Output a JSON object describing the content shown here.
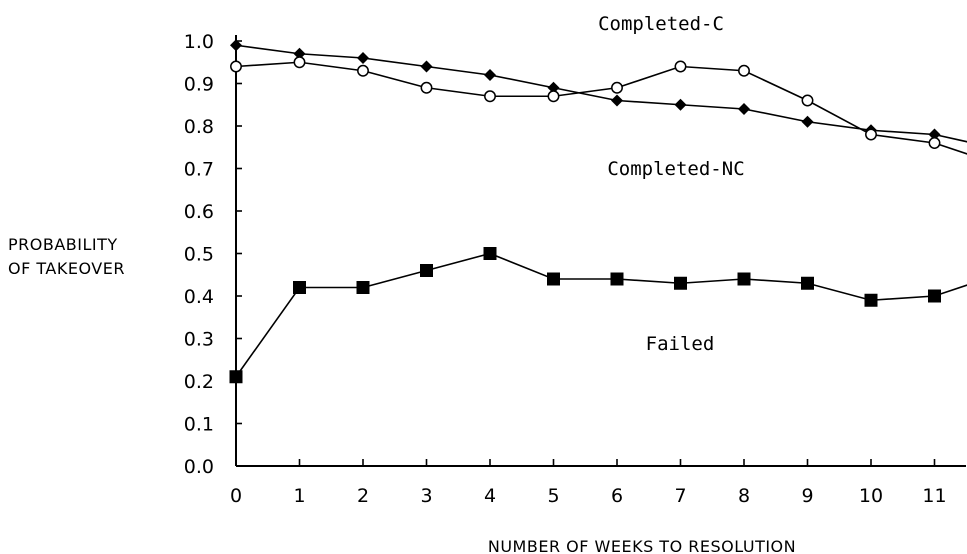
{
  "chart_data": {
    "type": "line",
    "title": "",
    "xlabel": "NUMBER OF WEEKS TO RESOLUTION",
    "ylabel": [
      "PROBABILITY",
      "OF TAKEOVER"
    ],
    "x": [
      0,
      1,
      2,
      3,
      4,
      5,
      6,
      7,
      8,
      9,
      10,
      11
    ],
    "xticks": [
      "0",
      "1",
      "2",
      "3",
      "4",
      "5",
      "6",
      "7",
      "8",
      "9",
      "10",
      "11"
    ],
    "yticks": [
      "0.0",
      "0.1",
      "0.2",
      "0.3",
      "0.4",
      "0.5",
      "0.6",
      "0.7",
      "0.8",
      "0.9",
      "1.0"
    ],
    "xlim": [
      0,
      11.6
    ],
    "ylim": [
      0,
      1.0
    ],
    "grid": false,
    "series": [
      {
        "name": "Completed-C",
        "marker": "filled-diamond",
        "values": [
          0.99,
          0.97,
          0.96,
          0.94,
          0.92,
          0.89,
          0.86,
          0.85,
          0.84,
          0.81,
          0.79,
          0.78
        ],
        "tail_value": 0.76
      },
      {
        "name": "Completed-NC",
        "marker": "open-circle",
        "values": [
          0.94,
          0.95,
          0.93,
          0.89,
          0.87,
          0.87,
          0.89,
          0.94,
          0.93,
          0.86,
          0.78,
          0.76
        ],
        "tail_value": 0.73
      },
      {
        "name": "Failed",
        "marker": "filled-square",
        "values": [
          0.21,
          0.42,
          0.42,
          0.46,
          0.5,
          0.44,
          0.44,
          0.43,
          0.44,
          0.43,
          0.39,
          0.4
        ],
        "tail_value": 0.43
      }
    ]
  }
}
